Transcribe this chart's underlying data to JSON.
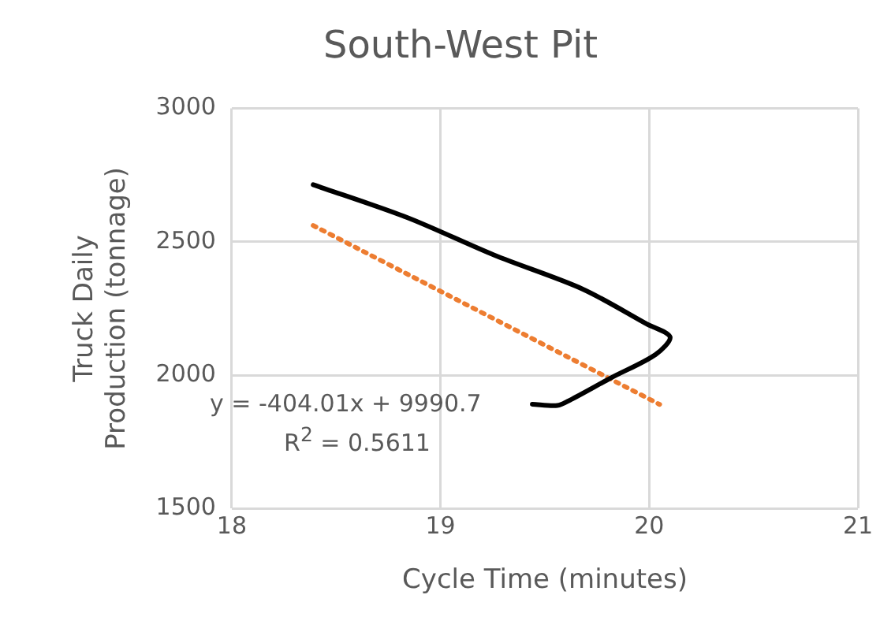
{
  "chart_data": {
    "type": "line",
    "title": "South-West Pit",
    "xlabel": "Cycle Time (minutes)",
    "ylabel": "Truck Daily Production (tonnage)",
    "series": [
      {
        "color": "#000000",
        "x": [
          18.39,
          18.84,
          19.26,
          19.68,
          19.99,
          20.1,
          20.03,
          19.82,
          19.62,
          19.56,
          19.44
        ],
        "values": [
          2714,
          2591,
          2449,
          2323,
          2191,
          2143,
          2077,
          1991,
          1906,
          1886,
          1891
        ]
      },
      {
        "color": "#ed7d31",
        "line_style": "dotted",
        "x": [
          18.39,
          20.05
        ],
        "values": [
          2561,
          1890
        ]
      }
    ],
    "xlim": [
      18,
      21
    ],
    "xticks": [
      18,
      19,
      20,
      21
    ],
    "ylim": [
      1500,
      3000
    ],
    "yticks": [
      1500,
      2000,
      2500,
      3000
    ],
    "grid": true,
    "legend": false,
    "marker": "none",
    "annotations": [
      "y = -404.01x + 9990.7",
      "R$^{2}$ = 0.5611"
    ]
  }
}
